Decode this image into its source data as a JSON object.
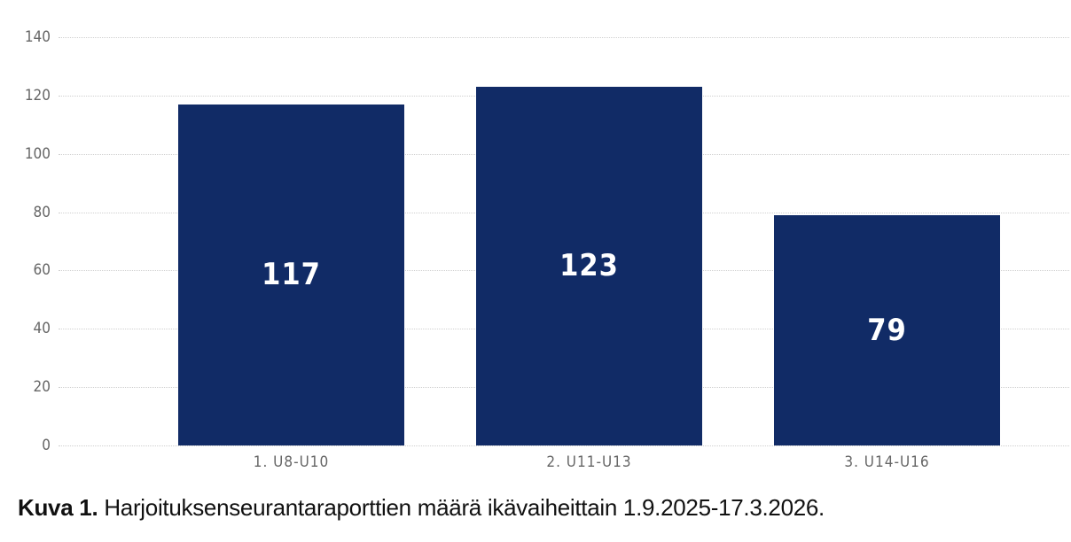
{
  "chart_data": {
    "type": "bar",
    "title": "",
    "categories": [
      "1. U8-U10",
      "2. U11-U13",
      "3. U14-U16"
    ],
    "values": [
      117,
      123,
      79
    ],
    "data_labels": [
      "117",
      "123",
      "79"
    ],
    "xlabel": "",
    "ylabel": "",
    "ylim": [
      0,
      140
    ],
    "yticks": [
      "0",
      "20",
      "40",
      "60",
      "80",
      "100",
      "120",
      "140"
    ],
    "grid": true,
    "legend": null,
    "bar_color": "#112b66"
  },
  "caption": {
    "label": "Kuva 1.",
    "text": " Harjoituksenseurantaraporttien määrä ikävaiheittain 1.9.2025-17.3.2026."
  }
}
